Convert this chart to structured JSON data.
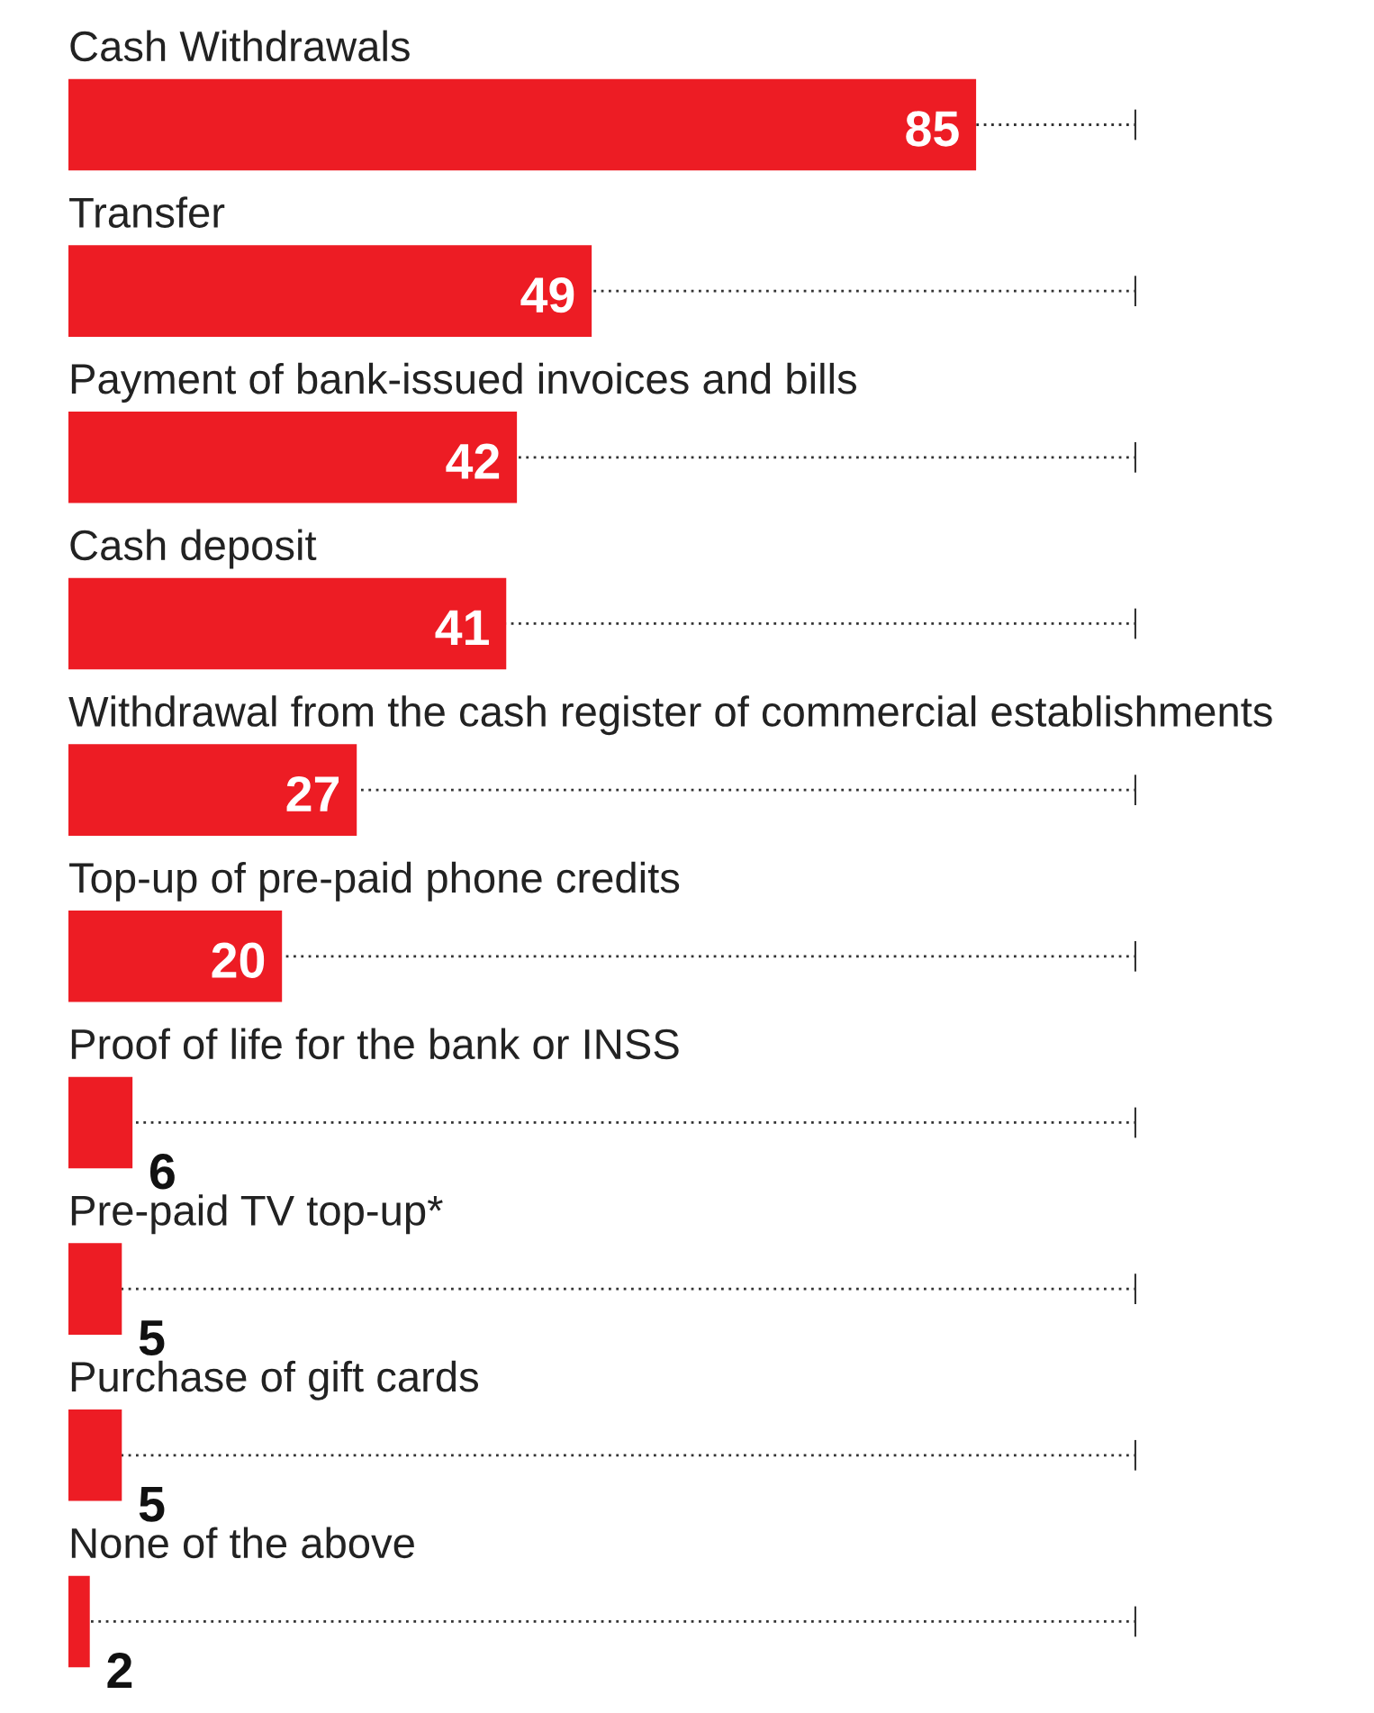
{
  "chart_data": {
    "type": "bar",
    "orientation": "horizontal",
    "categories": [
      "Cash Withdrawals",
      "Transfer",
      "Payment of bank-issued invoices and bills",
      "Cash deposit",
      "Withdrawal from the cash register of commercial establishments",
      "Top-up of pre-paid phone credits",
      "Proof of life for the bank or INSS",
      "Pre-paid TV top-up*",
      "Purchase of gift cards",
      "None of the above"
    ],
    "values": [
      85,
      49,
      42,
      41,
      27,
      20,
      6,
      5,
      5,
      2
    ],
    "color": "#ed1c24",
    "data_labels": true,
    "xlim": [
      0,
      100
    ]
  }
}
